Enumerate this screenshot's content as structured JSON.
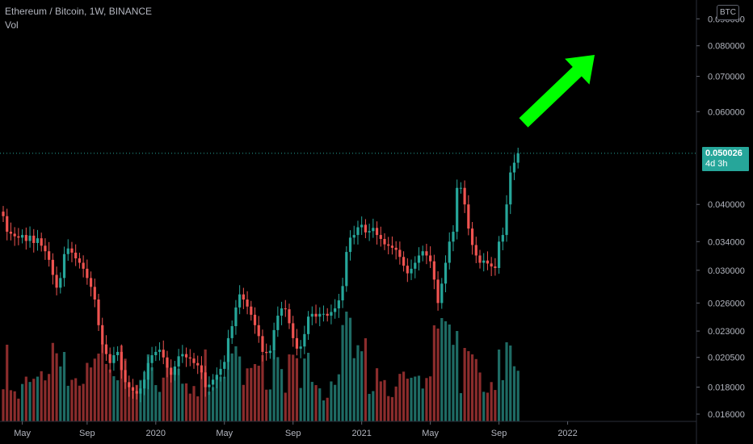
{
  "legend": {
    "symbol_line": "Ethereum / Bitcoin, 1W, BINANCE",
    "volume_label": "Vol"
  },
  "price_axis": {
    "currency_badge": "BTC",
    "tick_labels": [
      "0.090000",
      "0.080000",
      "0.070000",
      "0.060000",
      "0.040000",
      "0.034000",
      "0.030000",
      "0.026000",
      "0.023000",
      "0.020500",
      "0.018000",
      "0.016000"
    ],
    "last_price": "0.050026",
    "countdown": "4d 3h"
  },
  "colors": {
    "up": "#26a69a",
    "down": "#ef5350",
    "up_volume": "#1e6b64",
    "down_volume": "#8b2c2c",
    "background": "#000000",
    "arrow": "#00ff00",
    "text": "#b2b5be"
  },
  "chart_data": {
    "type": "candlestick",
    "scale": "log",
    "ylim": [
      0.0155,
      0.095
    ],
    "x_tick_labels": [
      "May",
      "Sep",
      "2020",
      "May",
      "Sep",
      "2021",
      "May",
      "Sep",
      "2022"
    ],
    "last_price": 0.050026,
    "annotation": "green-up-arrow",
    "close_series": [
      0.038,
      0.0355,
      0.0352,
      0.0348,
      0.0346,
      0.035,
      0.0341,
      0.0349,
      0.0338,
      0.0345,
      0.0334,
      0.0326,
      0.0314,
      0.0294,
      0.0278,
      0.029,
      0.0322,
      0.033,
      0.0324,
      0.0316,
      0.031,
      0.0302,
      0.029,
      0.0279,
      0.0264,
      0.0236,
      0.0217,
      0.0208,
      0.02,
      0.0207,
      0.021,
      0.0194,
      0.0184,
      0.018,
      0.0177,
      0.0175,
      0.0179,
      0.0186,
      0.02,
      0.0207,
      0.021,
      0.0212,
      0.0205,
      0.0196,
      0.019,
      0.0197,
      0.0206,
      0.0208,
      0.0205,
      0.0204,
      0.02,
      0.0198,
      0.0192,
      0.018,
      0.0182,
      0.0186,
      0.019,
      0.0195,
      0.0201,
      0.0223,
      0.0235,
      0.0255,
      0.027,
      0.0264,
      0.0256,
      0.0247,
      0.0236,
      0.0225,
      0.021,
      0.0209,
      0.0211,
      0.0231,
      0.0246,
      0.0254,
      0.0253,
      0.0238,
      0.0223,
      0.0213,
      0.0215,
      0.0227,
      0.0245,
      0.0248,
      0.0245,
      0.0248,
      0.0248,
      0.0246,
      0.025,
      0.0254,
      0.0263,
      0.028,
      0.0325,
      0.0346,
      0.035,
      0.0362,
      0.0366,
      0.0354,
      0.0356,
      0.0361,
      0.035,
      0.0344,
      0.0336,
      0.0334,
      0.0331,
      0.0328,
      0.0318,
      0.0306,
      0.0296,
      0.0302,
      0.031,
      0.032,
      0.0326,
      0.032,
      0.0312,
      0.0288,
      0.026,
      0.0283,
      0.031,
      0.034,
      0.0355,
      0.043,
      0.043,
      0.04,
      0.036,
      0.0335,
      0.032,
      0.031,
      0.0313,
      0.0309,
      0.0305,
      0.0303,
      0.034,
      0.035,
      0.04,
      0.046,
      0.048,
      0.05
    ],
    "x_ticks_at_bar": [
      5,
      22,
      40,
      58,
      76,
      94,
      112,
      130,
      148
    ]
  }
}
